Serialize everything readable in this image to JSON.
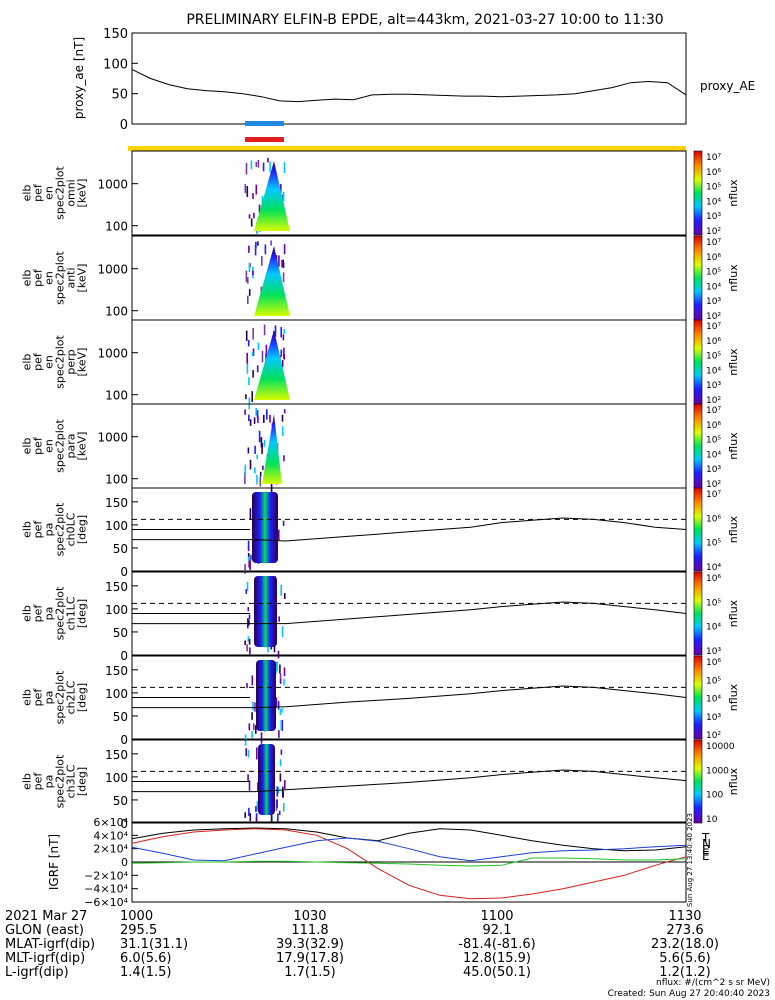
{
  "title": "PRELIMINARY ELFIN-B EPDE, alt=443km, 2021-03-27 10:00 to 11:30",
  "proxy_ae": {
    "ylabel": "proxy_ae [nT]",
    "legend": "proxy_AE",
    "ticks": [
      "150",
      "100",
      "50",
      "0"
    ]
  },
  "bars": [
    {
      "name": "blue",
      "color": "#1e88e5"
    },
    {
      "name": "red",
      "color": "#e11d1d"
    },
    {
      "name": "yellow",
      "color": "#ffd400"
    }
  ],
  "energy_panels": [
    {
      "label": [
        "elb",
        "pef",
        "en",
        "spec2plot",
        "omni",
        "[keV]"
      ],
      "ticks": [
        "1000",
        "100"
      ]
    },
    {
      "label": [
        "elb",
        "pef",
        "en",
        "spec2plot",
        "anti",
        "[keV]"
      ],
      "ticks": [
        "1000",
        "100"
      ]
    },
    {
      "label": [
        "elb",
        "pef",
        "en",
        "spec2plot",
        "perp",
        "[keV]"
      ],
      "ticks": [
        "1000",
        "100"
      ]
    },
    {
      "label": [
        "elb",
        "pef",
        "en",
        "spec2plot",
        "para",
        "[keV]"
      ],
      "ticks": [
        "1000",
        "100"
      ]
    }
  ],
  "pa_panels": [
    {
      "label": [
        "elb",
        "pef",
        "pa",
        "spec2plot",
        "ch0LC",
        "[deg]"
      ],
      "ticks": [
        "150",
        "100",
        "50",
        "0"
      ]
    },
    {
      "label": [
        "elb",
        "pef",
        "pa",
        "spec2plot",
        "ch1LC",
        "[deg]"
      ],
      "ticks": [
        "150",
        "100",
        "50",
        "0"
      ]
    },
    {
      "label": [
        "elb",
        "pef",
        "pa",
        "spec2plot",
        "ch2LC",
        "[deg]"
      ],
      "ticks": [
        "150",
        "100",
        "50",
        "0"
      ]
    },
    {
      "label": [
        "elb",
        "pef",
        "pa",
        "spec2plot",
        "ch3LC",
        "[deg]"
      ],
      "ticks": [
        "150",
        "100",
        "50",
        "0"
      ]
    }
  ],
  "colorbars": [
    {
      "label": "nflux",
      "ticks": [
        "10⁷",
        "10⁶",
        "10⁵",
        "10⁴",
        "10³",
        "10²"
      ]
    },
    {
      "label": "nflux",
      "ticks": [
        "10⁷",
        "10⁶",
        "10⁵",
        "10⁴",
        "10³",
        "10²"
      ]
    },
    {
      "label": "nflux",
      "ticks": [
        "10⁷",
        "10⁶",
        "10⁵",
        "10⁴",
        "10³",
        "10²"
      ]
    },
    {
      "label": "nflux",
      "ticks": [
        "10⁷",
        "10⁶",
        "10⁵",
        "10⁴",
        "10³",
        "10²"
      ]
    },
    {
      "label": "nflux",
      "ticks": [
        "10⁷",
        "10⁶",
        "10⁵",
        "10⁴"
      ]
    },
    {
      "label": "nflux",
      "ticks": [
        "10⁶",
        "10⁵",
        "10⁴",
        "10³"
      ]
    },
    {
      "label": "nflux",
      "ticks": [
        "10⁶",
        "10⁵",
        "10⁴",
        "10³",
        "10²"
      ]
    },
    {
      "label": "nflux",
      "ticks": [
        "10000",
        "1000",
        "100",
        "10"
      ]
    }
  ],
  "igrf": {
    "ylabel": "IGRF [nT]",
    "ticks": [
      "6×10⁴",
      "4×10⁴",
      "2×10⁴",
      "0",
      "−2×10⁴",
      "−4×10⁴",
      "−6×10⁴"
    ],
    "legend": [
      {
        "label": "T",
        "color": "#000000"
      },
      {
        "label": "N",
        "color": "#d61f1f"
      },
      {
        "label": "E",
        "color": "#1b3fd6"
      },
      {
        "label": "E",
        "color": "#23c323"
      }
    ]
  },
  "side_stamp": "Sun Aug 27 13:40:40 2023",
  "ephemeris": {
    "rows": [
      [
        "2021 Mar 27",
        "1000",
        "1030",
        "1100",
        "1130"
      ],
      [
        "GLON (east)",
        "295.5",
        "111.8",
        "92.1",
        "273.6"
      ],
      [
        "MLAT-igrf(dip)",
        "31.1(31.1)",
        "39.3(32.9)",
        "-81.4(-81.6)",
        "23.2(18.0)"
      ],
      [
        "MLT-igrf(dip)",
        "6.0(5.6)",
        "17.9(17.8)",
        "12.8(15.9)",
        "5.6(5.6)"
      ],
      [
        "L-igrf(dip)",
        "1.4(1.5)",
        "1.7(1.5)",
        "45.0(50.1)",
        "1.2(1.2)"
      ]
    ]
  },
  "footer": {
    "units": "nflux: #/(cm^2 s sr MeV)",
    "created": "Created: Sun Aug 27 20:40:40 2023"
  },
  "chart_data": [
    {
      "type": "line",
      "title": "PRELIMINARY ELFIN-B EPDE, alt=443km, 2021-03-27 10:00 to 11:30",
      "ylabel": "proxy_ae [nT]",
      "ylim": [
        0,
        150
      ],
      "x_minutes": [
        0,
        3,
        6,
        9,
        12,
        15,
        18,
        21,
        24,
        27,
        30,
        33,
        36,
        39,
        42,
        45,
        48,
        51,
        54,
        57,
        60,
        63,
        66,
        69,
        72,
        75,
        78,
        81,
        84,
        87,
        90
      ],
      "series": [
        {
          "name": "proxy_AE",
          "values": [
            90,
            75,
            65,
            58,
            55,
            53,
            50,
            45,
            38,
            37,
            39,
            41,
            40,
            48,
            49,
            49,
            48,
            47,
            46,
            46,
            45,
            46,
            47,
            48,
            50,
            55,
            60,
            68,
            70,
            68,
            48
          ]
        }
      ]
    },
    {
      "type": "line",
      "ylabel": "IGRF [nT]",
      "ylim": [
        -60000,
        60000
      ],
      "x_minutes": [
        0,
        5,
        10,
        15,
        20,
        25,
        30,
        35,
        40,
        45,
        50,
        55,
        60,
        65,
        70,
        75,
        80,
        85,
        90
      ],
      "series": [
        {
          "name": "T",
          "values": [
            35000,
            43000,
            48000,
            50000,
            51000,
            50000,
            45000,
            36000,
            32000,
            43000,
            50000,
            48000,
            40000,
            32000,
            25000,
            20000,
            17000,
            18000,
            23000
          ]
        },
        {
          "name": "N",
          "values": [
            28000,
            38000,
            45000,
            48000,
            50000,
            48000,
            40000,
            20000,
            -10000,
            -35000,
            -50000,
            -55000,
            -54000,
            -48000,
            -40000,
            -30000,
            -20000,
            -5000,
            8000
          ]
        },
        {
          "name": "E",
          "values": [
            22000,
            13000,
            3000,
            2000,
            12000,
            22000,
            32000,
            36000,
            31000,
            20000,
            8000,
            2000,
            8000,
            14000,
            17000,
            18000,
            20000,
            23000,
            25000
          ]
        },
        {
          "name": "E",
          "values": [
            -2000,
            -1000,
            0,
            0,
            1000,
            1000,
            0,
            -1000,
            -2000,
            -3000,
            -5000,
            -6000,
            -5000,
            6000,
            6000,
            5000,
            3000,
            3000,
            5000
          ]
        }
      ]
    },
    {
      "type": "line",
      "ylim": [
        0,
        180
      ],
      "x_minutes": [
        0,
        10,
        20,
        25,
        35,
        45,
        55,
        60,
        65,
        70,
        75,
        80,
        85,
        90
      ],
      "series": [
        {
          "name": "ch0LC",
          "values": [
            68,
            68,
            68,
            65,
            75,
            85,
            95,
            105,
            110,
            115,
            112,
            105,
            95,
            90
          ]
        },
        {
          "name": "ch1LC",
          "values": [
            68,
            68,
            68,
            68,
            78,
            88,
            98,
            105,
            110,
            115,
            112,
            105,
            98,
            90
          ]
        },
        {
          "name": "ch2LC",
          "values": [
            68,
            68,
            68,
            70,
            80,
            88,
            98,
            105,
            110,
            115,
            112,
            105,
            98,
            90
          ]
        },
        {
          "name": "ch3LC",
          "values": [
            68,
            68,
            68,
            72,
            80,
            88,
            98,
            105,
            110,
            115,
            112,
            105,
            98,
            92
          ]
        }
      ]
    }
  ]
}
